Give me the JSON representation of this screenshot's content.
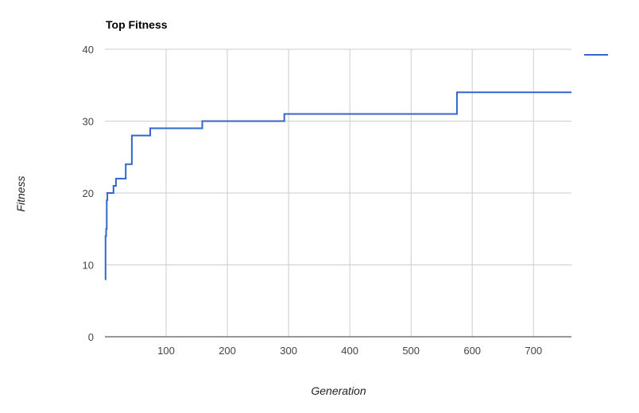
{
  "chart_data": {
    "type": "line",
    "title": "Top Fitness",
    "xlabel": "Generation",
    "ylabel": "Fitness",
    "xlim": [
      0,
      762
    ],
    "ylim": [
      0,
      40
    ],
    "x_ticks": [
      100,
      200,
      300,
      400,
      500,
      600,
      700
    ],
    "y_ticks": [
      0,
      10,
      20,
      30,
      40
    ],
    "grid": true,
    "legend": "right",
    "series": [
      {
        "name": "",
        "color": "#3366cc",
        "step": true,
        "points": [
          [
            0,
            8
          ],
          [
            1,
            14
          ],
          [
            2,
            15
          ],
          [
            3,
            19
          ],
          [
            4,
            20
          ],
          [
            14,
            21
          ],
          [
            18,
            22
          ],
          [
            34,
            24
          ],
          [
            44,
            28
          ],
          [
            74,
            29
          ],
          [
            159,
            30
          ],
          [
            293,
            31
          ],
          [
            575,
            34
          ],
          [
            762,
            34
          ]
        ]
      }
    ]
  }
}
